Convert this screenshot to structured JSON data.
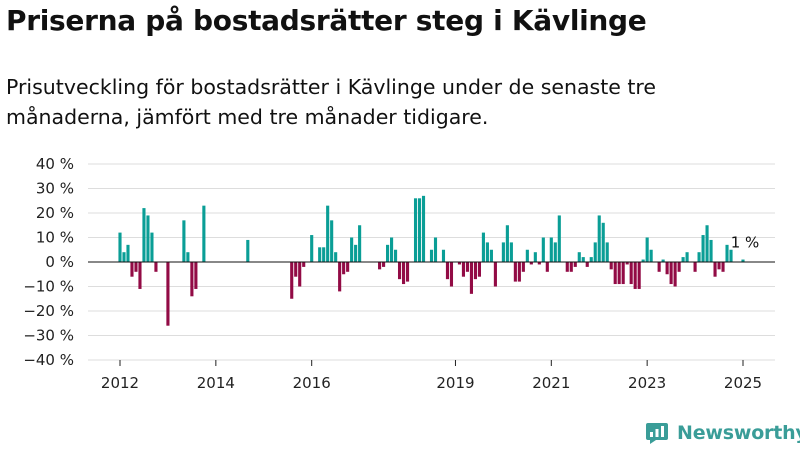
{
  "header": {
    "title": "Priserna på bostadsrätter steg i Kävlinge",
    "subtitle": "Prisutveckling för bostadsrätter i Kävlinge under de senaste tre månaderna, jämfört med tre månader tidigare."
  },
  "brand": {
    "name": "Newsworthy",
    "icon": "newsworthy-logo-icon",
    "color": "#3a9d98"
  },
  "colors": {
    "positive": "#0a9e96",
    "negative": "#920b45",
    "grid": "#dddddd",
    "zero": "#111111"
  },
  "chart_data": {
    "type": "bar",
    "title": "",
    "xlabel": "",
    "ylabel": "",
    "ylim": [
      -0.4,
      0.4
    ],
    "grid": true,
    "legend": "none",
    "yticks": [
      {
        "value": 0.4,
        "label": "40 %"
      },
      {
        "value": 0.3,
        "label": "30 %"
      },
      {
        "value": 0.2,
        "label": "20 %"
      },
      {
        "value": 0.1,
        "label": "10 %"
      },
      {
        "value": 0.0,
        "label": "0 %"
      },
      {
        "value": -0.1,
        "label": "−10 %"
      },
      {
        "value": -0.2,
        "label": "−20 %"
      },
      {
        "value": -0.3,
        "label": "−30 %"
      },
      {
        "value": -0.4,
        "label": "−40 %"
      }
    ],
    "xticks": [
      {
        "date": "2012-01",
        "label": "2012"
      },
      {
        "date": "2014-01",
        "label": "2014"
      },
      {
        "date": "2016-01",
        "label": "2016"
      },
      {
        "date": "2019-01",
        "label": "2019"
      },
      {
        "date": "2021-01",
        "label": "2021"
      },
      {
        "date": "2023-01",
        "label": "2023"
      },
      {
        "date": "2025-01",
        "label": "2025"
      }
    ],
    "annotation": {
      "date": "2025-01",
      "label": "1 %"
    },
    "series": [
      {
        "values": [
          {
            "date": "2012-01",
            "value": 0.12
          },
          {
            "date": "2012-02",
            "value": 0.04
          },
          {
            "date": "2012-03",
            "value": 0.07
          },
          {
            "date": "2012-04",
            "value": -0.06
          },
          {
            "date": "2012-05",
            "value": -0.04
          },
          {
            "date": "2012-06",
            "value": -0.11
          },
          {
            "date": "2012-07",
            "value": 0.22
          },
          {
            "date": "2012-08",
            "value": 0.19
          },
          {
            "date": "2012-09",
            "value": 0.12
          },
          {
            "date": "2012-10",
            "value": -0.04
          },
          {
            "date": "2013-01",
            "value": -0.26
          },
          {
            "date": "2013-05",
            "value": 0.17
          },
          {
            "date": "2013-06",
            "value": 0.04
          },
          {
            "date": "2013-07",
            "value": -0.14
          },
          {
            "date": "2013-08",
            "value": -0.11
          },
          {
            "date": "2013-10",
            "value": 0.23
          },
          {
            "date": "2014-09",
            "value": 0.09
          },
          {
            "date": "2015-08",
            "value": -0.15
          },
          {
            "date": "2015-09",
            "value": -0.06
          },
          {
            "date": "2015-10",
            "value": -0.1
          },
          {
            "date": "2015-11",
            "value": -0.02
          },
          {
            "date": "2016-01",
            "value": 0.11
          },
          {
            "date": "2016-03",
            "value": 0.06
          },
          {
            "date": "2016-04",
            "value": 0.06
          },
          {
            "date": "2016-05",
            "value": 0.23
          },
          {
            "date": "2016-06",
            "value": 0.17
          },
          {
            "date": "2016-07",
            "value": 0.04
          },
          {
            "date": "2016-08",
            "value": -0.12
          },
          {
            "date": "2016-09",
            "value": -0.05
          },
          {
            "date": "2016-10",
            "value": -0.04
          },
          {
            "date": "2016-11",
            "value": 0.1
          },
          {
            "date": "2016-12",
            "value": 0.07
          },
          {
            "date": "2017-01",
            "value": 0.15
          },
          {
            "date": "2017-06",
            "value": -0.03
          },
          {
            "date": "2017-07",
            "value": -0.02
          },
          {
            "date": "2017-08",
            "value": 0.07
          },
          {
            "date": "2017-09",
            "value": 0.1
          },
          {
            "date": "2017-10",
            "value": 0.05
          },
          {
            "date": "2017-11",
            "value": -0.07
          },
          {
            "date": "2017-12",
            "value": -0.09
          },
          {
            "date": "2018-01",
            "value": -0.08
          },
          {
            "date": "2018-03",
            "value": 0.26
          },
          {
            "date": "2018-04",
            "value": 0.26
          },
          {
            "date": "2018-05",
            "value": 0.27
          },
          {
            "date": "2018-07",
            "value": 0.05
          },
          {
            "date": "2018-08",
            "value": 0.1
          },
          {
            "date": "2018-10",
            "value": 0.05
          },
          {
            "date": "2018-11",
            "value": -0.07
          },
          {
            "date": "2018-12",
            "value": -0.1
          },
          {
            "date": "2019-02",
            "value": -0.01
          },
          {
            "date": "2019-03",
            "value": -0.06
          },
          {
            "date": "2019-04",
            "value": -0.04
          },
          {
            "date": "2019-05",
            "value": -0.13
          },
          {
            "date": "2019-06",
            "value": -0.07
          },
          {
            "date": "2019-07",
            "value": -0.06
          },
          {
            "date": "2019-08",
            "value": 0.12
          },
          {
            "date": "2019-09",
            "value": 0.08
          },
          {
            "date": "2019-10",
            "value": 0.05
          },
          {
            "date": "2019-11",
            "value": -0.1
          },
          {
            "date": "2020-01",
            "value": 0.08
          },
          {
            "date": "2020-02",
            "value": 0.15
          },
          {
            "date": "2020-03",
            "value": 0.08
          },
          {
            "date": "2020-04",
            "value": -0.08
          },
          {
            "date": "2020-05",
            "value": -0.08
          },
          {
            "date": "2020-06",
            "value": -0.04
          },
          {
            "date": "2020-07",
            "value": 0.05
          },
          {
            "date": "2020-08",
            "value": -0.01
          },
          {
            "date": "2020-09",
            "value": 0.04
          },
          {
            "date": "2020-10",
            "value": -0.01
          },
          {
            "date": "2020-11",
            "value": 0.1
          },
          {
            "date": "2020-12",
            "value": -0.04
          },
          {
            "date": "2021-01",
            "value": 0.1
          },
          {
            "date": "2021-02",
            "value": 0.08
          },
          {
            "date": "2021-03",
            "value": 0.19
          },
          {
            "date": "2021-05",
            "value": -0.04
          },
          {
            "date": "2021-06",
            "value": -0.04
          },
          {
            "date": "2021-07",
            "value": -0.02
          },
          {
            "date": "2021-08",
            "value": 0.04
          },
          {
            "date": "2021-09",
            "value": 0.02
          },
          {
            "date": "2021-10",
            "value": -0.02
          },
          {
            "date": "2021-11",
            "value": 0.02
          },
          {
            "date": "2021-12",
            "value": 0.08
          },
          {
            "date": "2022-01",
            "value": 0.19
          },
          {
            "date": "2022-02",
            "value": 0.16
          },
          {
            "date": "2022-03",
            "value": 0.08
          },
          {
            "date": "2022-04",
            "value": -0.03
          },
          {
            "date": "2022-05",
            "value": -0.09
          },
          {
            "date": "2022-06",
            "value": -0.09
          },
          {
            "date": "2022-07",
            "value": -0.09
          },
          {
            "date": "2022-08",
            "value": -0.01
          },
          {
            "date": "2022-09",
            "value": -0.09
          },
          {
            "date": "2022-10",
            "value": -0.11
          },
          {
            "date": "2022-11",
            "value": -0.11
          },
          {
            "date": "2022-12",
            "value": 0.01
          },
          {
            "date": "2023-01",
            "value": 0.1
          },
          {
            "date": "2023-02",
            "value": 0.05
          },
          {
            "date": "2023-04",
            "value": -0.04
          },
          {
            "date": "2023-05",
            "value": 0.01
          },
          {
            "date": "2023-06",
            "value": -0.05
          },
          {
            "date": "2023-07",
            "value": -0.09
          },
          {
            "date": "2023-08",
            "value": -0.1
          },
          {
            "date": "2023-09",
            "value": -0.04
          },
          {
            "date": "2023-10",
            "value": 0.02
          },
          {
            "date": "2023-11",
            "value": 0.04
          },
          {
            "date": "2024-01",
            "value": -0.04
          },
          {
            "date": "2024-02",
            "value": 0.04
          },
          {
            "date": "2024-03",
            "value": 0.11
          },
          {
            "date": "2024-04",
            "value": 0.15
          },
          {
            "date": "2024-05",
            "value": 0.09
          },
          {
            "date": "2024-06",
            "value": -0.06
          },
          {
            "date": "2024-07",
            "value": -0.03
          },
          {
            "date": "2024-08",
            "value": -0.04
          },
          {
            "date": "2024-09",
            "value": 0.07
          },
          {
            "date": "2024-10",
            "value": 0.05
          },
          {
            "date": "2025-01",
            "value": 0.01
          }
        ]
      }
    ]
  }
}
